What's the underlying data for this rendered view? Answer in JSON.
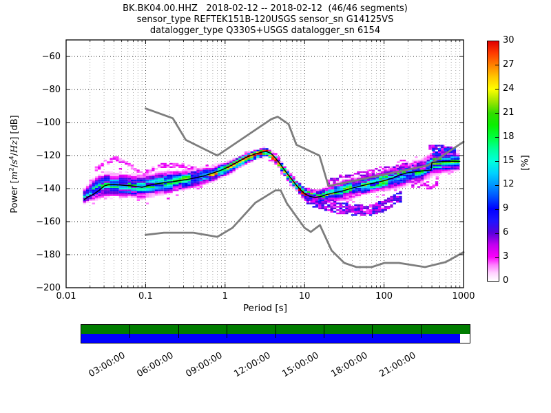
{
  "header": {
    "line1": "BK.BK04.00.HHZ   2018-02-12 -- 2018-02-12  (46/46 segments)",
    "line2": "sensor_type REFTEK151B-120USGS sensor_sn G14125VS",
    "line3": "datalogger_type Q330S+USGS datalogger_sn 6154"
  },
  "y_axis": {
    "label_parts": [
      "Power [",
      "m",
      "2",
      "/",
      "s",
      "4",
      "/",
      "Hz",
      "] [dB]"
    ],
    "label_text": "Power [m2/s4/Hz] [dB]",
    "ticks": [
      {
        "label": "−60",
        "value": -60
      },
      {
        "label": "−80",
        "value": -80
      },
      {
        "label": "−100",
        "value": -100
      },
      {
        "label": "−120",
        "value": -120
      },
      {
        "label": "−140",
        "value": -140
      },
      {
        "label": "−160",
        "value": -160
      },
      {
        "label": "−180",
        "value": -180
      },
      {
        "label": "−200",
        "value": -200
      }
    ]
  },
  "x_axis": {
    "label": "Period [s]",
    "ticks": [
      {
        "label": "0.01",
        "value": 0.01
      },
      {
        "label": "0.1",
        "value": 0.1
      },
      {
        "label": "1",
        "value": 1
      },
      {
        "label": "10",
        "value": 10
      },
      {
        "label": "100",
        "value": 100
      },
      {
        "label": "1000",
        "value": 1000
      }
    ]
  },
  "colorbar": {
    "label": "[%]",
    "min": 0,
    "max": 30,
    "ticks": [
      {
        "label": "0",
        "value": 0
      },
      {
        "label": "3",
        "value": 3
      },
      {
        "label": "6",
        "value": 6
      },
      {
        "label": "9",
        "value": 9
      },
      {
        "label": "12",
        "value": 12
      },
      {
        "label": "15",
        "value": 15
      },
      {
        "label": "18",
        "value": 18
      },
      {
        "label": "21",
        "value": 21
      },
      {
        "label": "24",
        "value": 24
      },
      {
        "label": "27",
        "value": 27
      },
      {
        "label": "30",
        "value": 30
      }
    ]
  },
  "timeline": {
    "day_hours": 24,
    "green_color": "#007d00",
    "blue_color": "#0000ff",
    "green_fill_fraction": 1.0,
    "blue_fill_fraction": 0.975,
    "ticks": [
      {
        "label": "03:00:00",
        "hour": 3
      },
      {
        "label": "06:00:00",
        "hour": 6
      },
      {
        "label": "09:00:00",
        "hour": 9
      },
      {
        "label": "12:00:00",
        "hour": 12
      },
      {
        "label": "15:00:00",
        "hour": 15
      },
      {
        "label": "18:00:00",
        "hour": 18
      },
      {
        "label": "21:00:00",
        "hour": 21
      }
    ]
  },
  "chart_data": {
    "type": "heatmap",
    "title": "BK.BK04.00.HHZ   2018-02-12 -- 2018-02-12  (46/46 segments)",
    "xlabel": "Period [s]",
    "ylabel": "Power [m2/s4/Hz] [dB]",
    "xscale": "log",
    "xlim": [
      0.01,
      1000
    ],
    "ylim": [
      -200,
      -50
    ],
    "grid": true,
    "db_bin_width_db": 1,
    "period_step_octaves": 0.125,
    "colorbar_range_percent": [
      0,
      30
    ],
    "colormap_stops": [
      [
        0,
        "#ffffff"
      ],
      [
        1,
        "#ffd2ff"
      ],
      [
        2,
        "#ff7dff"
      ],
      [
        3,
        "#fa00fa"
      ],
      [
        4.5,
        "#c300f0"
      ],
      [
        6,
        "#5a00dc"
      ],
      [
        7.5,
        "#1e14ff"
      ],
      [
        9,
        "#0000ff"
      ],
      [
        10.5,
        "#0050ff"
      ],
      [
        12,
        "#0096ff"
      ],
      [
        13.5,
        "#00d2ff"
      ],
      [
        15,
        "#00ffdc"
      ],
      [
        16.5,
        "#00ff9b"
      ],
      [
        18,
        "#00ff3c"
      ],
      [
        19.5,
        "#0aef00"
      ],
      [
        21,
        "#32dc00"
      ],
      [
        22.5,
        "#a0e600"
      ],
      [
        24,
        "#ffff00"
      ],
      [
        25.5,
        "#ffc800"
      ],
      [
        27,
        "#ff8200"
      ],
      [
        28.5,
        "#ff3c00"
      ],
      [
        30,
        "#e10000"
      ]
    ],
    "mode_line_black": [
      [
        0.017,
        -146.5
      ],
      [
        0.019,
        -145
      ],
      [
        0.022,
        -143.5
      ],
      [
        0.026,
        -141
      ],
      [
        0.03,
        -138.5
      ],
      [
        0.034,
        -137.6
      ],
      [
        0.04,
        -137.5
      ],
      [
        0.05,
        -137.9
      ],
      [
        0.065,
        -138.3
      ],
      [
        0.08,
        -138.8
      ],
      [
        0.09,
        -139.2
      ],
      [
        0.1,
        -138.6
      ],
      [
        0.12,
        -137.6
      ],
      [
        0.14,
        -137.1
      ],
      [
        0.18,
        -136.2
      ],
      [
        0.22,
        -135.8
      ],
      [
        0.28,
        -135
      ],
      [
        0.35,
        -134.3
      ],
      [
        0.45,
        -133.2
      ],
      [
        0.55,
        -132.2
      ],
      [
        0.7,
        -130.6
      ],
      [
        0.85,
        -129.2
      ],
      [
        1,
        -127.8
      ],
      [
        1.2,
        -126
      ],
      [
        1.5,
        -123.4
      ],
      [
        1.9,
        -120.8
      ],
      [
        2.4,
        -119
      ],
      [
        2.9,
        -117.9
      ],
      [
        3.3,
        -117.5
      ],
      [
        3.8,
        -118.8
      ],
      [
        4.3,
        -121.5
      ],
      [
        5,
        -125.5
      ],
      [
        5.8,
        -129.8
      ],
      [
        6.8,
        -134
      ],
      [
        8,
        -138.3
      ],
      [
        9,
        -141
      ],
      [
        10,
        -143
      ],
      [
        11.5,
        -144.6
      ],
      [
        13.5,
        -145.4
      ],
      [
        16,
        -144.8
      ],
      [
        19,
        -143.6
      ],
      [
        24,
        -142.4
      ],
      [
        30,
        -141.4
      ],
      [
        38,
        -140
      ],
      [
        48,
        -138.7
      ],
      [
        60,
        -137.6
      ],
      [
        78,
        -136.4
      ],
      [
        100,
        -135.2
      ],
      [
        130,
        -133.6
      ],
      [
        160,
        -131.6
      ],
      [
        200,
        -130.4
      ],
      [
        250,
        -129.8
      ],
      [
        320,
        -129.2
      ],
      [
        390,
        -128.8
      ],
      [
        400,
        -124.2
      ],
      [
        480,
        -123.8
      ],
      [
        600,
        -123.5
      ],
      [
        750,
        -123.4
      ],
      [
        900,
        -123.5
      ]
    ],
    "noise_models": {
      "color": "#7d7d7d",
      "nhnm": [
        [
          0.1,
          -91.5
        ],
        [
          0.22,
          -97.4
        ],
        [
          0.32,
          -110.5
        ],
        [
          0.8,
          -120
        ],
        [
          3.8,
          -98
        ],
        [
          4.6,
          -96.5
        ],
        [
          6.3,
          -101
        ],
        [
          7.9,
          -113.5
        ],
        [
          15.4,
          -120
        ],
        [
          20,
          -138.5
        ],
        [
          354.8,
          -126
        ],
        [
          1000,
          -111.7
        ]
      ],
      "nlnm": [
        [
          0.1,
          -168
        ],
        [
          0.17,
          -166.7
        ],
        [
          0.4,
          -166.7
        ],
        [
          0.8,
          -169.2
        ],
        [
          1.24,
          -163.7
        ],
        [
          2.4,
          -148.6
        ],
        [
          4.3,
          -141.1
        ],
        [
          5,
          -141.1
        ],
        [
          6,
          -149
        ],
        [
          10,
          -163.8
        ],
        [
          12,
          -166.2
        ],
        [
          15.6,
          -162.1
        ],
        [
          21.9,
          -177.5
        ],
        [
          31.6,
          -185
        ],
        [
          45,
          -187.5
        ],
        [
          70,
          -187.5
        ],
        [
          101,
          -185
        ],
        [
          154,
          -185
        ],
        [
          328,
          -187.5
        ],
        [
          600,
          -184.4
        ],
        [
          1000,
          -178.5
        ]
      ]
    },
    "histogram_envelope": [
      [
        0.017,
        -144.5,
        4.0,
        13
      ],
      [
        0.02,
        -142,
        5.0,
        13
      ],
      [
        0.025,
        -139.5,
        6.0,
        13
      ],
      [
        0.032,
        -137.8,
        6.5,
        13
      ],
      [
        0.05,
        -138,
        6.5,
        13
      ],
      [
        0.09,
        -139,
        6.5,
        12
      ],
      [
        0.15,
        -137,
        6.0,
        14
      ],
      [
        0.25,
        -135.5,
        5.5,
        15
      ],
      [
        0.4,
        -134,
        5.0,
        16
      ],
      [
        0.7,
        -131,
        4.0,
        18
      ],
      [
        1,
        -128.5,
        3.5,
        21
      ],
      [
        1.5,
        -124,
        3.0,
        25
      ],
      [
        2,
        -121,
        2.6,
        28
      ],
      [
        3.3,
        -117.5,
        2.2,
        30
      ],
      [
        4.5,
        -123,
        2.2,
        30
      ],
      [
        6,
        -131.5,
        2.4,
        29
      ],
      [
        8,
        -138.3,
        2.8,
        27
      ],
      [
        10,
        -143,
        3.2,
        23
      ],
      [
        14,
        -145.5,
        3.8,
        18
      ],
      [
        20,
        -143.5,
        4.4,
        16
      ],
      [
        30,
        -141.5,
        5.0,
        15
      ],
      [
        50,
        -138.5,
        5.0,
        16
      ],
      [
        80,
        -136.5,
        5.2,
        16
      ],
      [
        130,
        -133.5,
        5.6,
        16
      ],
      [
        200,
        -131,
        5.8,
        15
      ],
      [
        300,
        -129.5,
        6.0,
        14
      ],
      [
        420,
        -124.5,
        6.0,
        17
      ],
      [
        700,
        -123.5,
        5.8,
        16
      ],
      [
        900,
        -123.5,
        5.0,
        14
      ]
    ],
    "outlier_features": [
      {
        "pct": 2.5,
        "half_db": 0.7,
        "density": 0.75,
        "path": [
          [
            0.024,
            -128.5
          ],
          [
            0.03,
            -124.5
          ],
          [
            0.042,
            -121.8
          ],
          [
            0.055,
            -124
          ],
          [
            0.075,
            -128
          ],
          [
            0.1,
            -131
          ],
          [
            0.13,
            -127
          ],
          [
            0.17,
            -125.6
          ],
          [
            0.25,
            -125.6
          ],
          [
            0.33,
            -127
          ],
          [
            0.42,
            -128.5
          ]
        ]
      },
      {
        "pct": 5,
        "half_db": 2.2,
        "density": 0.8,
        "path": [
          [
            11,
            -146.5
          ],
          [
            16,
            -149
          ],
          [
            25,
            -151.5
          ],
          [
            40,
            -152.5
          ],
          [
            70,
            -153
          ],
          [
            100,
            -150.5
          ],
          [
            140,
            -147
          ],
          [
            170,
            -144.5
          ]
        ]
      },
      {
        "pct": 4,
        "half_db": 1.8,
        "density": 0.7,
        "path": [
          [
            20,
            -136
          ],
          [
            50,
            -132
          ],
          [
            100,
            -129.5
          ],
          [
            200,
            -127
          ],
          [
            340,
            -125.5
          ]
        ]
      },
      {
        "pct": 5,
        "half_db": 0.9,
        "density": 0.85,
        "path": [
          [
            380,
            -114.8
          ],
          [
            520,
            -114.5
          ],
          [
            700,
            -114.8
          ]
        ]
      },
      {
        "pct": 7,
        "half_db": 1.2,
        "density": 0.85,
        "path": [
          [
            420,
            -118.5
          ],
          [
            600,
            -118
          ],
          [
            800,
            -118.5
          ]
        ]
      },
      {
        "pct": 3,
        "half_db": 1.2,
        "density": 0.6,
        "path": [
          [
            230,
            -137
          ],
          [
            350,
            -137.5
          ],
          [
            500,
            -138
          ]
        ]
      }
    ]
  }
}
